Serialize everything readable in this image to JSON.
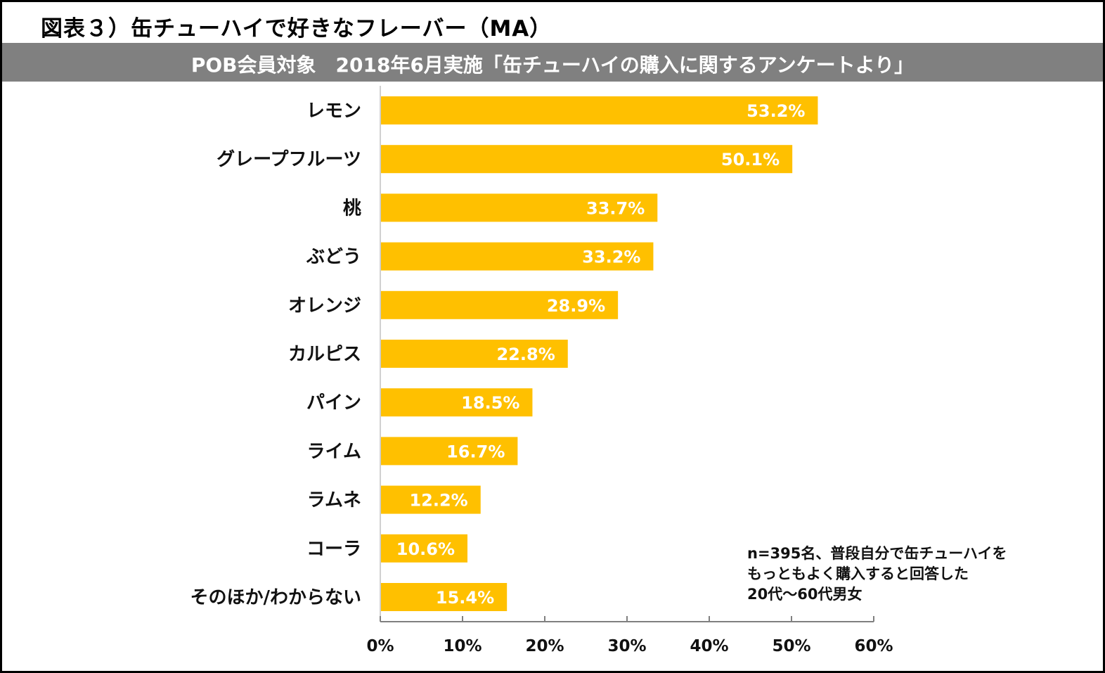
{
  "header": {
    "title": "図表３）缶チューハイで好きなフレーバー（MA）",
    "subtitle": "POB会員対象　2018年6月実施「缶チューハイの購入に関するアンケートより」"
  },
  "note": {
    "lines": [
      "n=395名、普段自分で缶チューハイを",
      "もっともよく購入すると回答した",
      "20代～60代男女"
    ]
  },
  "colors": {
    "bar": "#FFC000",
    "banner": "#808080",
    "axis": "#808080"
  },
  "chart_data": {
    "type": "bar",
    "orientation": "horizontal",
    "title": "図表３）缶チューハイで好きなフレーバー（MA）",
    "subtitle": "POB会員対象　2018年6月実施「缶チューハイの購入に関するアンケートより」",
    "xlabel": "",
    "ylabel": "",
    "categories": [
      "レモン",
      "グレープフルーツ",
      "桃",
      "ぶどう",
      "オレンジ",
      "カルピス",
      "パイン",
      "ライム",
      "ラムネ",
      "コーラ",
      "そのほか/わからない"
    ],
    "values": [
      53.2,
      50.1,
      33.7,
      33.2,
      28.9,
      22.8,
      18.5,
      16.7,
      12.2,
      10.6,
      15.4
    ],
    "value_labels": [
      "53.2%",
      "50.1%",
      "33.7%",
      "33.2%",
      "28.9%",
      "22.8%",
      "18.5%",
      "16.7%",
      "12.2%",
      "10.6%",
      "15.4%"
    ],
    "xlim": [
      0,
      60
    ],
    "xticks": [
      0,
      10,
      20,
      30,
      40,
      50,
      60
    ],
    "xtick_labels": [
      "0%",
      "10%",
      "20%",
      "30%",
      "40%",
      "50%",
      "60%"
    ],
    "grid": false,
    "legend": "none",
    "annotation": "n=395名、普段自分で缶チューハイをもっともよく購入すると回答した20代～60代男女"
  }
}
